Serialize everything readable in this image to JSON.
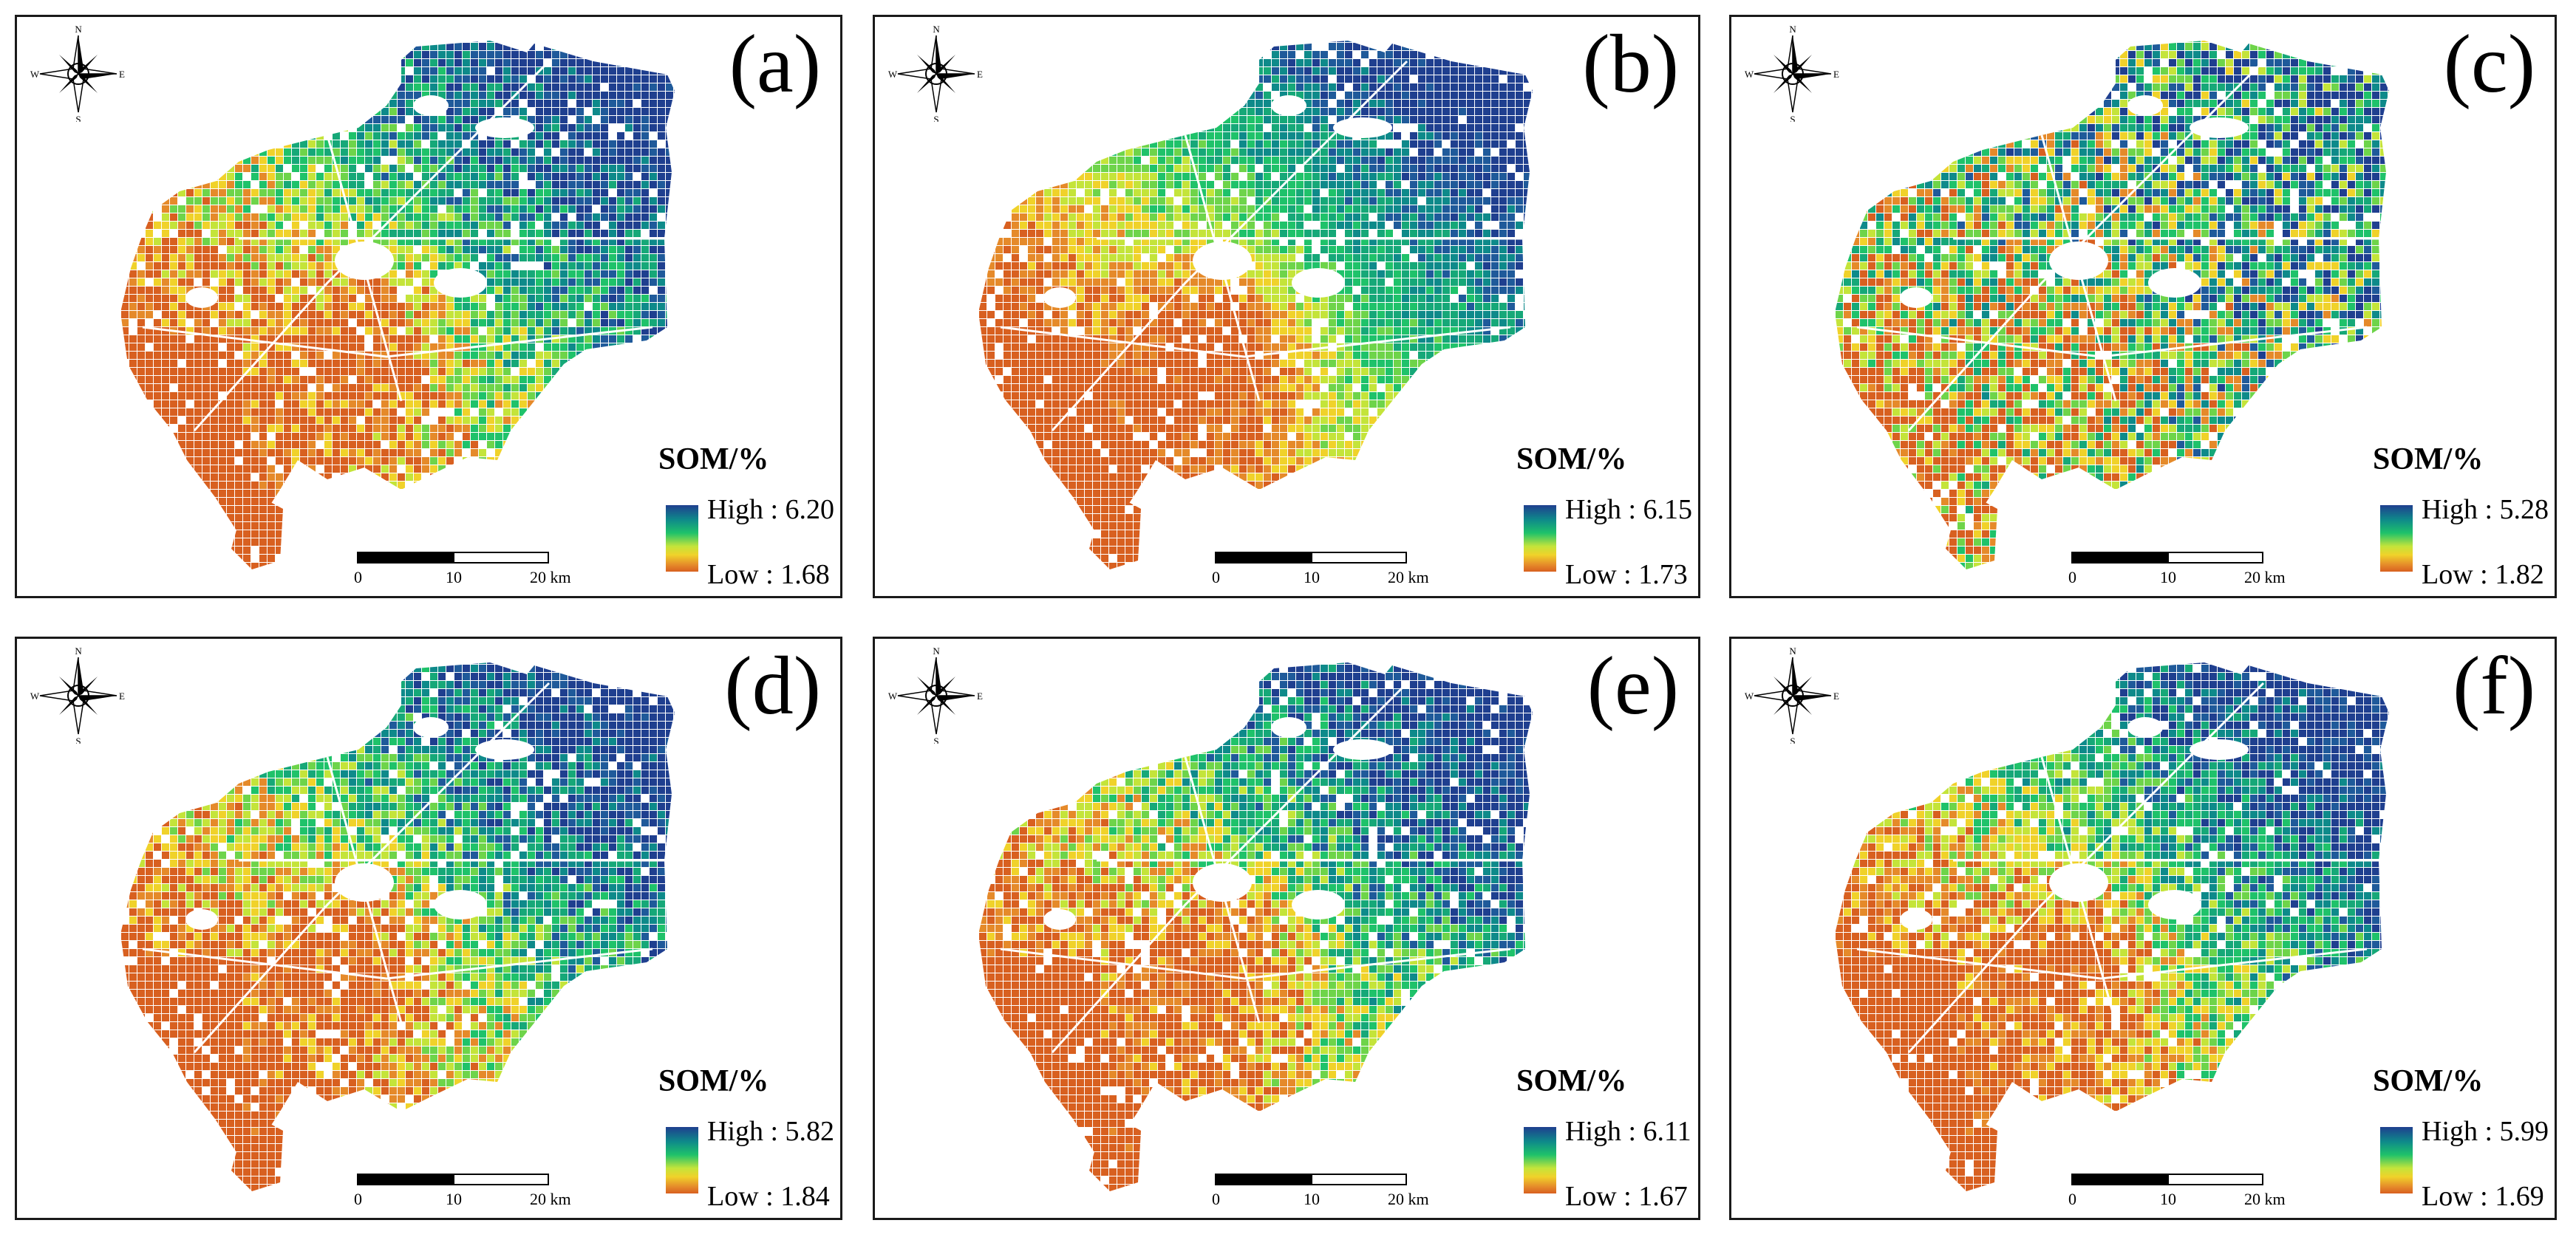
{
  "figure": {
    "panels": [
      {
        "label": "(a)",
        "legend_title": "SOM/%",
        "high": "High : 6.20",
        "low": "Low : 1.68",
        "tint": "mixed"
      },
      {
        "label": "(b)",
        "legend_title": "SOM/%",
        "high": "High : 6.15",
        "low": "Low : 1.73",
        "tint": "smooth"
      },
      {
        "label": "(c)",
        "legend_title": "SOM/%",
        "high": "High : 5.28",
        "low": "Low : 1.82",
        "tint": "speckled"
      },
      {
        "label": "(d)",
        "legend_title": "SOM/%",
        "high": "High : 5.82",
        "low": "Low : 1.84",
        "tint": "mixed"
      },
      {
        "label": "(e)",
        "legend_title": "SOM/%",
        "high": "High : 6.11",
        "low": "Low : 1.67",
        "tint": "mixed"
      },
      {
        "label": "(f)",
        "legend_title": "SOM/%",
        "high": "High : 5.99",
        "low": "Low : 1.69",
        "tint": "mixed"
      }
    ],
    "scale_ticks": [
      "0",
      "10",
      "20 km"
    ],
    "compass": {
      "n": "N",
      "s": "S",
      "e": "E",
      "w": "W"
    },
    "colors": {
      "high": "#1f3f8f",
      "mid": "#1fc26a",
      "low": "#d86020",
      "frame": "#1a1a1a"
    }
  }
}
